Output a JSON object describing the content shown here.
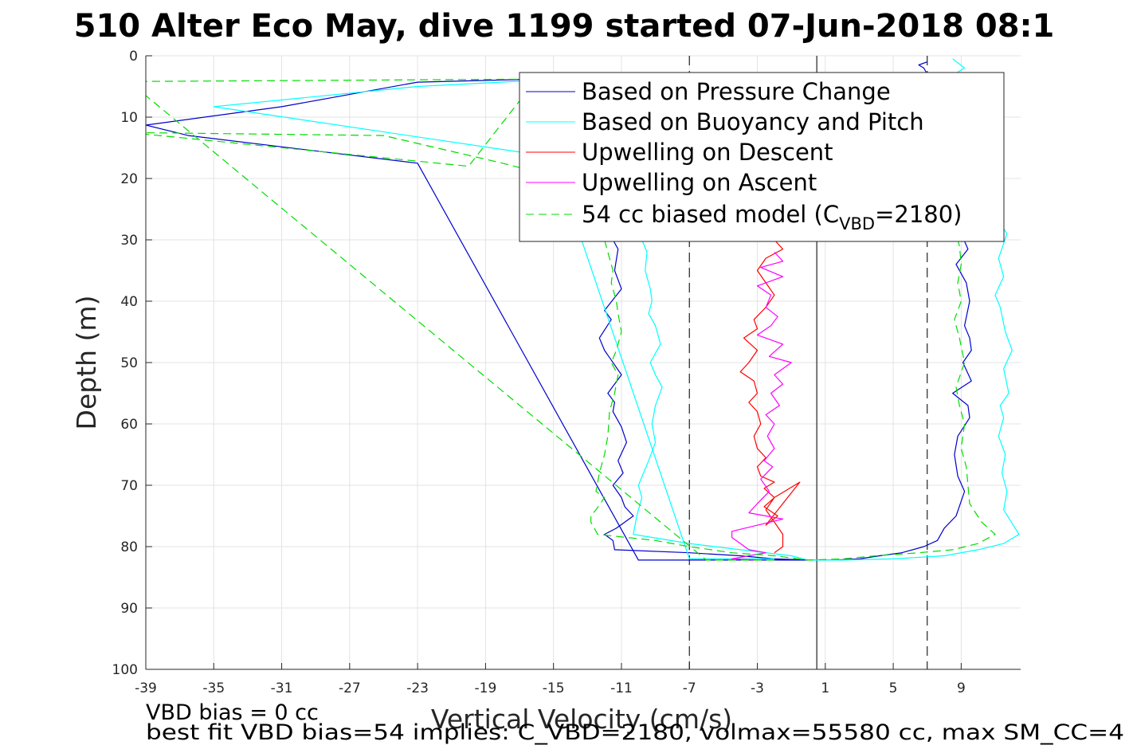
{
  "chart_data": {
    "type": "line",
    "title": "510 Alter Eco May, dive 1199 started 07-Jun-2018 08:1",
    "xlabel": "Vertical Velocity (cm/s)",
    "ylabel": "Depth (m)",
    "xlim": [
      -39,
      12.5
    ],
    "ylim": [
      0,
      100
    ],
    "y_reversed": true,
    "grid": true,
    "x_ticks": [
      -39,
      -35,
      -31,
      -27,
      -23,
      -19,
      -15,
      -11,
      -7,
      -3,
      1,
      5,
      9
    ],
    "y_ticks": [
      0,
      10,
      20,
      30,
      40,
      50,
      60,
      70,
      80,
      90,
      100
    ],
    "reference_lines": {
      "solid_x": 0.5,
      "dashed_x": [
        -7,
        7
      ]
    },
    "legend_position": "top-right",
    "legend": [
      {
        "label": "Based on Pressure Change",
        "color": "#0000cc",
        "style": "solid"
      },
      {
        "label": "Based on Buoyancy and Pitch",
        "color": "#00ffff",
        "style": "solid"
      },
      {
        "label": "Upwelling on Descent",
        "color": "#ff0000",
        "style": "solid"
      },
      {
        "label": "Upwelling on Ascent",
        "color": "#ff00ff",
        "style": "solid"
      },
      {
        "label_pre": "54 cc biased model (C",
        "label_sub": "VBD",
        "label_post": "=2180)",
        "color": "#00dd00",
        "style": "dashed"
      }
    ],
    "series": [
      {
        "name": "Based on Pressure Change",
        "color": "#0000cc",
        "dash": false,
        "x": [
          0.0,
          -2.0,
          -10.0,
          -23.0,
          -36.5,
          -39.0,
          -31.0,
          -23.0,
          -16.0,
          -14.0,
          -13.5,
          -12.0,
          -11.5,
          -11.2,
          -11.4,
          -11.0,
          -12.0,
          -11.6,
          -12.3,
          -12.0,
          -11.0,
          -11.8,
          -11.4,
          -11.5,
          -11.0,
          -10.7,
          -11.2,
          -10.9,
          -11.5,
          -11.0,
          -10.8,
          -10.3,
          -11.3,
          -12.0,
          -11.5,
          -11.4,
          -7.0,
          -4.0,
          -2.0,
          0.0,
          1.5,
          3.0,
          4.2,
          5.5,
          6.8,
          7.6,
          8.0,
          8.7,
          9.2,
          8.8,
          8.6,
          8.8,
          9.5,
          9.4,
          8.5,
          9.6,
          9.1,
          9.6,
          9.5,
          9.2,
          9.5,
          9.3,
          8.7,
          9.4,
          9.0,
          9.3,
          9.0,
          8.8,
          7.0,
          7.5,
          7.0,
          6.8,
          6.5,
          7.0
        ],
        "y": [
          82.2,
          82.2,
          82.2,
          17.5,
          13.0,
          11.3,
          8.3,
          4.3,
          3.8,
          3.6,
          20.0,
          26.0,
          30.0,
          31.5,
          35.0,
          38.0,
          41.5,
          43.0,
          46.0,
          48.0,
          52.0,
          55.0,
          56.5,
          58.0,
          60.5,
          63.0,
          66.0,
          68.0,
          70.0,
          72.0,
          73.5,
          75.0,
          77.0,
          78.0,
          79.0,
          80.5,
          81.0,
          81.5,
          82.0,
          82.2,
          82.2,
          82.0,
          81.5,
          81.0,
          80.0,
          79.0,
          77.0,
          75.0,
          71.0,
          68.5,
          65.0,
          62.0,
          59.0,
          57.0,
          55.0,
          53.0,
          50.0,
          48.0,
          46.0,
          44.0,
          40.0,
          37.0,
          34.0,
          31.5,
          29.0,
          26.0,
          22.0,
          18.0,
          8.0,
          5.0,
          3.0,
          2.0,
          1.5,
          1.0
        ]
      },
      {
        "name": "Based on Buoyancy and Pitch",
        "color": "#00ffff",
        "dash": false,
        "x": [
          -2.0,
          -7.0,
          -15.0,
          -35.0,
          -23.0,
          -16.0,
          -14.0,
          -12.0,
          -10.5,
          -9.8,
          -9.5,
          -9.6,
          -9.3,
          -9.2,
          -9.4,
          -9.0,
          -8.7,
          -9.3,
          -9.0,
          -8.6,
          -9.0,
          -9.2,
          -9.0,
          -9.4,
          -9.7,
          -10.0,
          -9.8,
          -10.1,
          -10.3,
          -7.0,
          -4.0,
          -1.0,
          0.0,
          2.0,
          5.0,
          8.0,
          10.0,
          11.5,
          12.4,
          11.5,
          11.7,
          11.4,
          11.6,
          11.2,
          11.5,
          11.3,
          11.8,
          11.5,
          12.0,
          11.6,
          11.3,
          11.0,
          11.5,
          11.2,
          11.7,
          11.0,
          10.8,
          10.5,
          10.0,
          9.5,
          8.5,
          8.0,
          9.2,
          8.5
        ],
        "y": [
          82.0,
          82.0,
          16.5,
          8.3,
          5.0,
          4.0,
          3.5,
          20.0,
          26.0,
          30.0,
          32.0,
          35.0,
          38.0,
          40.0,
          42.0,
          44.0,
          47.0,
          50.0,
          52.0,
          54.0,
          57.0,
          60.0,
          63.0,
          66.0,
          68.0,
          70.0,
          72.0,
          75.0,
          78.0,
          79.5,
          80.5,
          81.5,
          82.2,
          82.2,
          82.0,
          81.5,
          80.5,
          79.5,
          78.0,
          74.0,
          71.0,
          68.0,
          65.0,
          62.0,
          59.0,
          57.0,
          55.0,
          51.0,
          48.0,
          45.0,
          41.0,
          39.0,
          36.0,
          33.0,
          29.0,
          26.0,
          22.0,
          18.0,
          14.0,
          10.0,
          7.0,
          4.0,
          2.0,
          0.5
        ]
      },
      {
        "name": "Upwelling on Descent",
        "color": "#ff0000",
        "dash": false,
        "x": [
          -2.0,
          -1.5,
          -2.5,
          -3.0,
          -2.5,
          -2.0,
          -2.5,
          -3.2,
          -3.0,
          -3.8,
          -3.0,
          -3.5,
          -4.0,
          -3.2,
          -3.0,
          -3.5,
          -3.0,
          -2.8,
          -3.2,
          -3.0,
          -2.5,
          -3.0,
          -2.8,
          -2.0,
          -2.6,
          -2.0,
          -2.6,
          -1.8,
          -2.5,
          -0.5,
          -2.0,
          -2.5,
          -2.0,
          -1.5,
          -1.5,
          -2.0
        ],
        "y": [
          30.0,
          31.5,
          33.0,
          35.0,
          37.0,
          39.0,
          41.0,
          43.0,
          44.5,
          46.0,
          48.0,
          50.0,
          51.5,
          53.0,
          55.0,
          56.5,
          58.0,
          60.0,
          62.0,
          64.0,
          65.5,
          67.0,
          68.5,
          69.5,
          70.5,
          72.0,
          73.5,
          75.0,
          76.5,
          69.5,
          72.0,
          74.0,
          76.0,
          78.0,
          80.0,
          81.0
        ]
      },
      {
        "name": "Upwelling on Ascent",
        "color": "#ff00ff",
        "dash": false,
        "x": [
          -2.0,
          -1.5,
          -2.8,
          -1.5,
          -3.0,
          -2.2,
          -2.5,
          -1.8,
          -2.2,
          -3.0,
          -1.5,
          -2.3,
          -1.0,
          -2.0,
          -1.5,
          -2.2,
          -1.7,
          -2.5,
          -2.0,
          -2.4,
          -2.0,
          -2.6,
          -2.1,
          -2.8,
          -2.3,
          -3.0,
          -3.5,
          -1.5,
          -4.5,
          -4.5,
          -4.0,
          -3.5,
          -2.5,
          -3.5,
          -4.5,
          -3.0
        ],
        "y": [
          32.0,
          33.5,
          34.5,
          36.0,
          37.5,
          39.0,
          41.0,
          42.5,
          44.0,
          45.5,
          47.0,
          49.0,
          50.0,
          52.0,
          53.5,
          55.0,
          57.0,
          58.5,
          60.0,
          62.0,
          64.0,
          66.0,
          67.0,
          69.0,
          71.0,
          73.0,
          74.5,
          75.5,
          77.5,
          78.5,
          79.5,
          80.5,
          81.0,
          81.5,
          82.0,
          82.2
        ]
      },
      {
        "name": "54 cc biased model (C_VBD=2180)",
        "color": "#00dd00",
        "dash": true,
        "x": [
          -2.0,
          -6.0,
          -40.0,
          -16.0,
          -20.0,
          -40.0,
          -25.0,
          -18.0,
          -14.5,
          -13.0,
          -12.3,
          -12.0,
          -11.8,
          -11.5,
          -11.6,
          -11.3,
          -11.2,
          -11.0,
          -11.3,
          -11.6,
          -11.2,
          -11.4,
          -11.7,
          -11.8,
          -12.0,
          -12.3,
          -12.5,
          -12.0,
          -12.5,
          -12.8,
          -12.8,
          -12.4,
          -9.0,
          -7.0,
          -4.5,
          -2.0,
          0.0,
          2.0,
          4.0,
          6.5,
          8.5,
          10.0,
          11.0,
          10.2,
          9.5,
          9.4,
          9.3,
          9.0,
          9.2,
          8.9,
          8.7,
          9.2,
          8.9,
          8.6,
          9.0,
          8.8,
          9.0,
          8.9,
          8.5,
          8.5,
          8.0,
          7.5,
          7.0
        ],
        "y": [
          82.2,
          82.2,
          4.2,
          3.8,
          18.0,
          12.5,
          13.0,
          17.5,
          20.0,
          24.0,
          27.0,
          30.0,
          32.0,
          35.0,
          37.0,
          40.0,
          42.0,
          45.0,
          48.0,
          50.0,
          52.0,
          55.0,
          58.0,
          62.0,
          65.0,
          68.0,
          71.0,
          72.0,
          74.0,
          75.0,
          76.0,
          78.0,
          79.0,
          80.0,
          81.0,
          81.5,
          82.2,
          82.0,
          81.5,
          81.0,
          80.5,
          79.5,
          78.0,
          76.0,
          73.0,
          70.0,
          67.0,
          64.0,
          60.0,
          57.0,
          54.0,
          50.0,
          46.0,
          43.0,
          40.0,
          37.0,
          34.0,
          31.0,
          27.0,
          22.0,
          15.0,
          8.0,
          3.0
        ]
      }
    ]
  },
  "footer": {
    "line1": "VBD bias = 0 cc",
    "line2": "best fit VBD bias=54 implies: C_VBD=2180, volmax=55580 cc, max SM_CC=4"
  }
}
